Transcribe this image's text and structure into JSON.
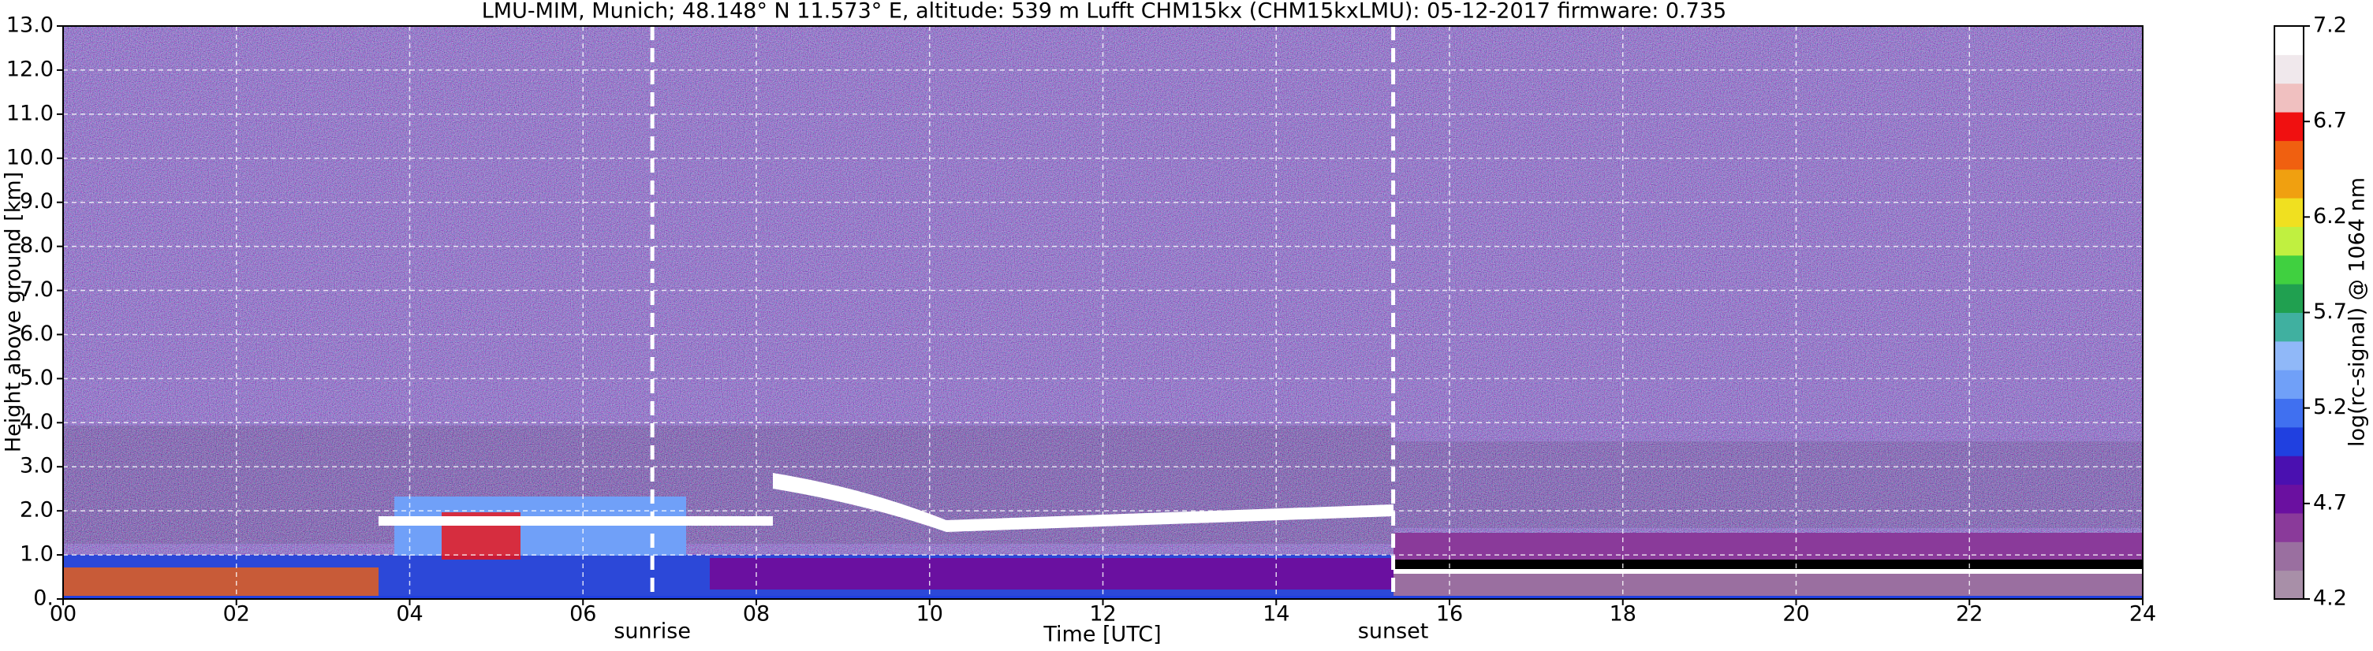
{
  "chart_data": {
    "type": "heatmap",
    "title": "LMU-MIM, Munich; 48.148° N 11.573° E, altitude: 539 m    Lufft CHM15kx (CHM15kxLMU): 05-12-2017    firmware: 0.735",
    "x_label": "Time [UTC]",
    "y_label": "Height above ground [km]",
    "colorbar_label": "log(rc-signal) @ 1064 nm",
    "xlim": [
      0,
      24
    ],
    "xticks": [
      {
        "value": 0,
        "label": "00"
      },
      {
        "value": 2,
        "label": "02"
      },
      {
        "value": 4,
        "label": "04"
      },
      {
        "value": 6,
        "label": "06"
      },
      {
        "value": 8,
        "label": "08"
      },
      10,
      12,
      14,
      16,
      18,
      20,
      22,
      24
    ],
    "ylim": [
      0,
      13
    ],
    "yticks": [
      {
        "value": 0,
        "label": "0."
      },
      {
        "value": 1,
        "label": "1.0"
      },
      {
        "value": 2,
        "label": "2.0"
      },
      {
        "value": 3,
        "label": "3.0"
      },
      {
        "value": 4,
        "label": "4.0"
      },
      {
        "value": 5,
        "label": "5.0"
      },
      {
        "value": 6,
        "label": "6.0"
      },
      {
        "value": 7,
        "label": "7.0"
      },
      {
        "value": 8,
        "label": "8.0"
      },
      {
        "value": 9,
        "label": "9.0"
      },
      {
        "value": 10,
        "label": "10.0"
      },
      {
        "value": 11,
        "label": "11.0"
      },
      {
        "value": 12,
        "label": "12.0"
      },
      {
        "value": 13,
        "label": "13.0"
      }
    ],
    "clim": [
      4.2,
      7.2
    ],
    "cticks": [
      4.2,
      4.7,
      5.2,
      5.7,
      6.2,
      6.7,
      7.2
    ],
    "colormap": [
      "#a88fa8",
      "#9a6fa0",
      "#8a3a9a",
      "#6a10a0",
      "#4a10b0",
      "#2040e0",
      "#4070f0",
      "#70a0f8",
      "#90b8f8",
      "#40b0a0",
      "#20a050",
      "#40d040",
      "#c0f040",
      "#f0e020",
      "#f0a010",
      "#f06010",
      "#f01010",
      "#f0c0c0",
      "#f0e8ec",
      "#ffffff"
    ],
    "grid": true,
    "annotations": [
      {
        "text": "sunrise",
        "x": 6.8
      },
      {
        "text": "sunset",
        "x": 15.35
      }
    ]
  }
}
